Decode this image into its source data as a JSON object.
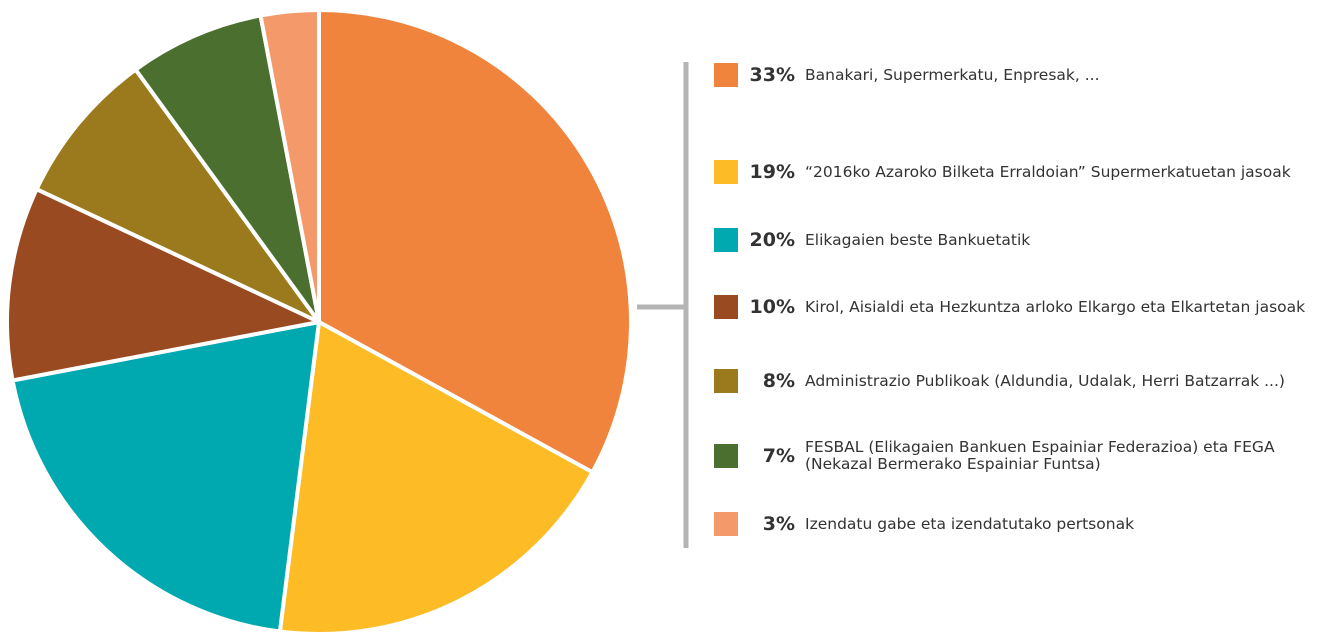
{
  "chart_data": {
    "type": "pie",
    "categories": [
      "Banakari, Supermerkatu, Enpresak, ...",
      "“2016ko Azaroko Bilketa Erraldoian” Supermerkatuetan jasoak",
      "Elikagaien beste Bankuetatik",
      "Kirol, Aisialdi eta Hezkuntza arloko Elkargo eta Elkartetan jasoak",
      "Administrazio Publikoak (Aldundia, Udalak, Herri Batzarrak ...)",
      "FESBAL (Elikagaien Bankuen Espainiar Federazioa) eta FEGA (Nekazal Bermerako Espainiar Funtsa)",
      "Izendatu gabe eta izendatutako pertsonak"
    ],
    "values": [
      33,
      19,
      20,
      10,
      8,
      7,
      3
    ],
    "value_labels": [
      "33%",
      "19%",
      "20%",
      "10%",
      "8%",
      "7%",
      "3%"
    ],
    "colors": [
      "#f0843c",
      "#fdbb26",
      "#00a9b0",
      "#9a4a20",
      "#9b7a1d",
      "#4a6f2f",
      "#f4996a"
    ],
    "legend": "right"
  }
}
